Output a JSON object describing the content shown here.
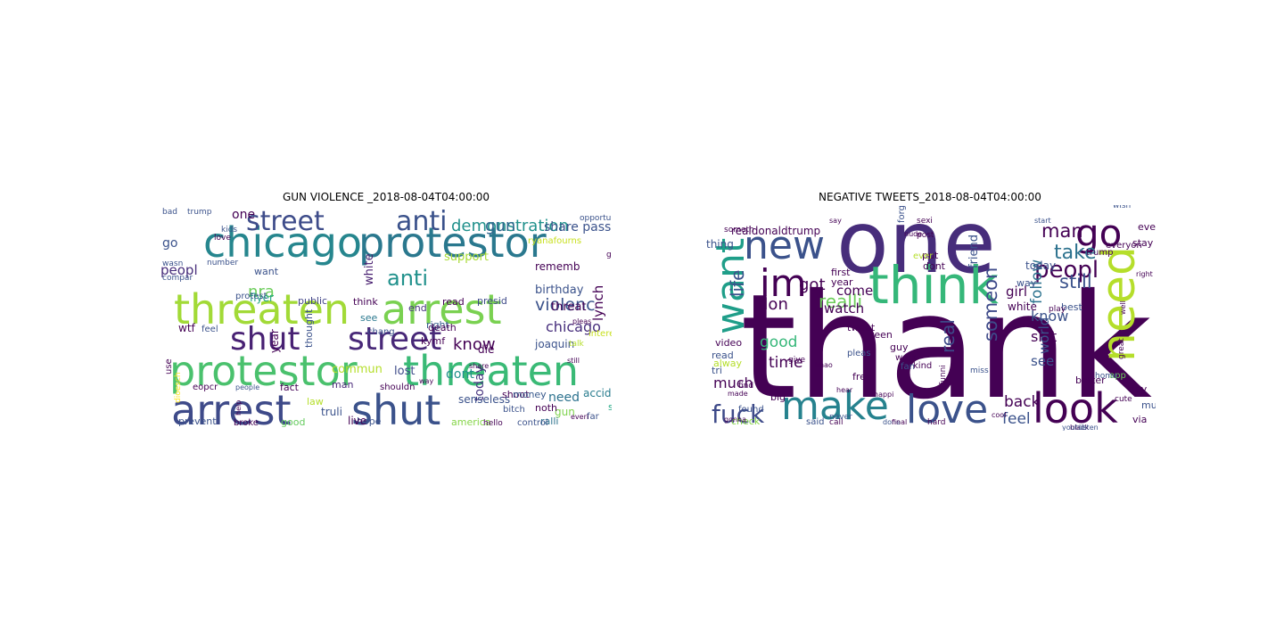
{
  "figure": {
    "panels": [
      {
        "title": "GUN VIOLENCE _2018-08-04T04:00:00",
        "words": [
          {
            "text": "chicago",
            "color": "#26868e"
          },
          {
            "text": "protestor",
            "color": "#2a788e"
          },
          {
            "text": "threaten",
            "color": "#a2da37"
          },
          {
            "text": "arrest",
            "color": "#7ad151"
          },
          {
            "text": "shut",
            "color": "#482173"
          },
          {
            "text": "street",
            "color": "#482878"
          },
          {
            "text": "protestor",
            "color": "#4ac16d"
          },
          {
            "text": "threaten",
            "color": "#3aba76"
          },
          {
            "text": "arrest",
            "color": "#3e4a89"
          },
          {
            "text": "shut",
            "color": "#3b528b"
          },
          {
            "text": "street",
            "color": "#3e4c8a"
          },
          {
            "text": "anti",
            "color": "#3b528b"
          },
          {
            "text": "anti",
            "color": "#21918c"
          },
          {
            "text": "demonstration",
            "color": "#21918c"
          },
          {
            "text": "gun",
            "color": "#31688e"
          },
          {
            "text": "violenc",
            "color": "#3b528b"
          },
          {
            "text": "nra",
            "color": "#6ccd5a"
          },
          {
            "text": "know",
            "color": "#440154"
          },
          {
            "text": "peopl",
            "color": "#472d7b"
          },
          {
            "text": "share pass",
            "color": "#3b528b"
          },
          {
            "text": "support",
            "color": "#a8db34"
          },
          {
            "text": "lynch",
            "color": "#440154"
          },
          {
            "text": "flyer",
            "color": "#20a486"
          },
          {
            "text": "white",
            "color": "#481f70"
          },
          {
            "text": "chicago",
            "color": "#472e7c"
          },
          {
            "text": "dont",
            "color": "#21918c"
          },
          {
            "text": "today",
            "color": "#46337e"
          },
          {
            "text": "need",
            "color": "#2c728e"
          },
          {
            "text": "gun",
            "color": "#7fd34e"
          },
          {
            "text": "commun",
            "color": "#b5de2b"
          },
          {
            "text": "senseless",
            "color": "#3b528b"
          },
          {
            "text": "right",
            "color": "#365c8d"
          },
          {
            "text": "threat",
            "color": "#440154"
          },
          {
            "text": "lost",
            "color": "#3e4a89"
          },
          {
            "text": "one",
            "color": "#440154"
          },
          {
            "text": "go",
            "color": "#3b528b"
          },
          {
            "text": "want",
            "color": "#3b528b"
          },
          {
            "text": "public",
            "color": "#414487"
          },
          {
            "text": "think",
            "color": "#440154"
          },
          {
            "text": "end",
            "color": "#46337e"
          },
          {
            "text": "read",
            "color": "#440154"
          },
          {
            "text": "presid",
            "color": "#3e4a89"
          },
          {
            "text": "death",
            "color": "#440154"
          },
          {
            "text": "kymf",
            "color": "#440154"
          },
          {
            "text": "die",
            "color": "#440154"
          },
          {
            "text": "joaquin",
            "color": "#3b528b"
          },
          {
            "text": "ralli",
            "color": "#2c728e"
          },
          {
            "text": "shoot",
            "color": "#440154"
          },
          {
            "text": "money",
            "color": "#38598c"
          },
          {
            "text": "accid",
            "color": "#287c8e"
          },
          {
            "text": "stop",
            "color": "#22a884"
          },
          {
            "text": "far",
            "color": "#3b528b"
          },
          {
            "text": "hope",
            "color": "#3b528b"
          },
          {
            "text": "live",
            "color": "#440154"
          },
          {
            "text": "good",
            "color": "#65cb5e"
          },
          {
            "text": "truli",
            "color": "#3b528b"
          },
          {
            "text": "law",
            "color": "#b5de2b"
          },
          {
            "text": "year",
            "color": "#440154"
          },
          {
            "text": "man",
            "color": "#482878"
          },
          {
            "text": "fact",
            "color": "#440154"
          },
          {
            "text": "wtf",
            "color": "#440154"
          },
          {
            "text": "feel",
            "color": "#3b528b"
          },
          {
            "text": "prevent",
            "color": "#3b528b"
          },
          {
            "text": "broke",
            "color": "#440154"
          },
          {
            "text": "america",
            "color": "#86d549"
          },
          {
            "text": "hello",
            "color": "#440154"
          },
          {
            "text": "control",
            "color": "#3b528b"
          },
          {
            "text": "rememb",
            "color": "#440154"
          },
          {
            "text": "interest",
            "color": "#c8e020"
          },
          {
            "text": "birthday",
            "color": "#3b528b"
          },
          {
            "text": "see",
            "color": "#2a788e"
          },
          {
            "text": "chang",
            "color": "#3b528b"
          },
          {
            "text": "noth",
            "color": "#440154"
          },
          {
            "text": "bitch",
            "color": "#3b528b"
          },
          {
            "text": "shouldn",
            "color": "#440154"
          },
          {
            "text": "eopcr",
            "color": "#440154"
          },
          {
            "text": "people",
            "color": "#3b528b"
          },
          {
            "text": "protest",
            "color": "#3b528b"
          },
          {
            "text": "love",
            "color": "#440154"
          },
          {
            "text": "kids",
            "color": "#3b528b"
          },
          {
            "text": "trump",
            "color": "#3b528b"
          },
          {
            "text": "bad",
            "color": "#3b528b"
          },
          {
            "text": "wasn",
            "color": "#3b528b"
          },
          {
            "text": "number",
            "color": "#3b528b"
          },
          {
            "text": "compar",
            "color": "#3b528b"
          },
          {
            "text": "opportun",
            "color": "#3b528b"
          },
          {
            "text": "ryanafourns",
            "color": "#c8e020"
          },
          {
            "text": "use",
            "color": "#440154"
          },
          {
            "text": "dioesch",
            "color": "#fde725"
          },
          {
            "text": "thought",
            "color": "#3b528b"
          },
          {
            "text": "talk",
            "color": "#b5de2b"
          },
          {
            "text": "everi",
            "color": "#440154"
          },
          {
            "text": "still",
            "color": "#440154"
          },
          {
            "text": "share",
            "color": "#440154"
          },
          {
            "text": "way",
            "color": "#440154"
          },
          {
            "text": "help",
            "color": "#440154"
          },
          {
            "text": "pleas",
            "color": "#440154"
          },
          {
            "text": "gop",
            "color": "#440154"
          },
          {
            "text": "ha",
            "color": "#3b528b"
          }
        ]
      },
      {
        "title": "NEGATIVE TWEETS_2018-08-04T04:00:00",
        "words": [
          {
            "text": "thank",
            "color": "#440154"
          },
          {
            "text": "one",
            "color": "#472d7b"
          },
          {
            "text": "new",
            "color": "#3b528b"
          },
          {
            "text": "go",
            "color": "#440154"
          },
          {
            "text": "think",
            "color": "#35b779"
          },
          {
            "text": "im",
            "color": "#440154"
          },
          {
            "text": "want",
            "color": "#1f9e89"
          },
          {
            "text": "need",
            "color": "#b5de2b"
          },
          {
            "text": "look",
            "color": "#440154"
          },
          {
            "text": "make",
            "color": "#26828e"
          },
          {
            "text": "love",
            "color": "#3b528b"
          },
          {
            "text": "fuck",
            "color": "#3e4a89"
          },
          {
            "text": "peopl",
            "color": "#440154"
          },
          {
            "text": "take",
            "color": "#2c728e"
          },
          {
            "text": "man",
            "color": "#440154"
          },
          {
            "text": "still",
            "color": "#3b528b"
          },
          {
            "text": "got",
            "color": "#440154"
          },
          {
            "text": "realli",
            "color": "#6ccd5a"
          },
          {
            "text": "life",
            "color": "#3b528b"
          },
          {
            "text": "don",
            "color": "#440154"
          },
          {
            "text": "come",
            "color": "#440154"
          },
          {
            "text": "watch",
            "color": "#440154"
          },
          {
            "text": "good",
            "color": "#35b779"
          },
          {
            "text": "time",
            "color": "#440154"
          },
          {
            "text": "much",
            "color": "#440154"
          },
          {
            "text": "girl",
            "color": "#440154"
          },
          {
            "text": "know",
            "color": "#3b528b"
          },
          {
            "text": "shit",
            "color": "#440154"
          },
          {
            "text": "back",
            "color": "#440154"
          },
          {
            "text": "feel",
            "color": "#3b528b"
          },
          {
            "text": "see",
            "color": "#3b528b"
          },
          {
            "text": "world",
            "color": "#3b528b"
          },
          {
            "text": "follow",
            "color": "#2c728e"
          },
          {
            "text": "someon",
            "color": "#3e4a89"
          },
          {
            "text": "real",
            "color": "#3e4a89"
          },
          {
            "text": "friend",
            "color": "#3b528b"
          },
          {
            "text": "realdonaldtrump",
            "color": "#440154"
          },
          {
            "text": "thing",
            "color": "#3b528b"
          },
          {
            "text": "best",
            "color": "#3b528b"
          },
          {
            "text": "today",
            "color": "#3b528b"
          },
          {
            "text": "lol",
            "color": "#fde725"
          },
          {
            "text": "even",
            "color": "#440154"
          },
          {
            "text": "stay",
            "color": "#440154"
          },
          {
            "text": "white",
            "color": "#440154"
          },
          {
            "text": "video",
            "color": "#440154"
          },
          {
            "text": "read",
            "color": "#3b528b"
          },
          {
            "text": "alway",
            "color": "#b5de2b"
          },
          {
            "text": "tri",
            "color": "#3b528b"
          },
          {
            "text": "found",
            "color": "#3b528b"
          },
          {
            "text": "check",
            "color": "#86d549"
          },
          {
            "text": "said",
            "color": "#3b528b"
          },
          {
            "text": "call",
            "color": "#440154"
          },
          {
            "text": "never",
            "color": "#3b528b"
          },
          {
            "text": "done",
            "color": "#3b528b"
          },
          {
            "text": "final",
            "color": "#440154"
          },
          {
            "text": "hard",
            "color": "#440154"
          },
          {
            "text": "play",
            "color": "#440154"
          },
          {
            "text": "better",
            "color": "#440154"
          },
          {
            "text": "day",
            "color": "#440154"
          },
          {
            "text": "music",
            "color": "#3b528b"
          },
          {
            "text": "via",
            "color": "#440154"
          },
          {
            "text": "app",
            "color": "#6ccd5a"
          },
          {
            "text": "miss",
            "color": "#3b528b"
          },
          {
            "text": "tweet",
            "color": "#440154"
          },
          {
            "text": "teen",
            "color": "#440154"
          },
          {
            "text": "big",
            "color": "#440154"
          },
          {
            "text": "guy",
            "color": "#440154"
          },
          {
            "text": "work",
            "color": "#440154"
          },
          {
            "text": "fan",
            "color": "#3b528b"
          },
          {
            "text": "free",
            "color": "#440154"
          },
          {
            "text": "first",
            "color": "#440154"
          },
          {
            "text": "year",
            "color": "#440154"
          },
          {
            "text": "put",
            "color": "#440154"
          },
          {
            "text": "dont",
            "color": "#440154"
          },
          {
            "text": "way",
            "color": "#3b528b"
          },
          {
            "text": "pleas",
            "color": "#3b528b"
          },
          {
            "text": "kind",
            "color": "#440154"
          },
          {
            "text": "find",
            "color": "#440154"
          },
          {
            "text": "give",
            "color": "#440154"
          },
          {
            "text": "trump",
            "color": "#440154"
          },
          {
            "text": "everyon",
            "color": "#440154"
          },
          {
            "text": "well",
            "color": "#440154"
          },
          {
            "text": "great",
            "color": "#440154"
          },
          {
            "text": "black",
            "color": "#440154"
          },
          {
            "text": "listen",
            "color": "#3b528b"
          },
          {
            "text": "youtub",
            "color": "#3b528b"
          },
          {
            "text": "gonna",
            "color": "#440154"
          },
          {
            "text": "made",
            "color": "#440154"
          },
          {
            "text": "someth",
            "color": "#440154"
          },
          {
            "text": "wish",
            "color": "#3b528b"
          },
          {
            "text": "sexi",
            "color": "#440154"
          },
          {
            "text": "home",
            "color": "#3b528b"
          },
          {
            "text": "cute",
            "color": "#440154"
          },
          {
            "text": "cool",
            "color": "#440154"
          },
          {
            "text": "happi",
            "color": "#440154"
          },
          {
            "text": "hear",
            "color": "#440154"
          },
          {
            "text": "funni",
            "color": "#440154"
          },
          {
            "text": "ever",
            "color": "#b5de2b"
          },
          {
            "text": "say",
            "color": "#440154"
          },
          {
            "text": "start",
            "color": "#3b528b"
          },
          {
            "text": "post",
            "color": "#440154"
          },
          {
            "text": "forget",
            "color": "#3b528b"
          },
          {
            "text": "nude",
            "color": "#440154"
          },
          {
            "text": "right",
            "color": "#440154"
          },
          {
            "text": "lmao",
            "color": "#440154"
          },
          {
            "text": "oh",
            "color": "#440154"
          },
          {
            "text": "porn",
            "color": "#440154"
          }
        ]
      }
    ]
  }
}
